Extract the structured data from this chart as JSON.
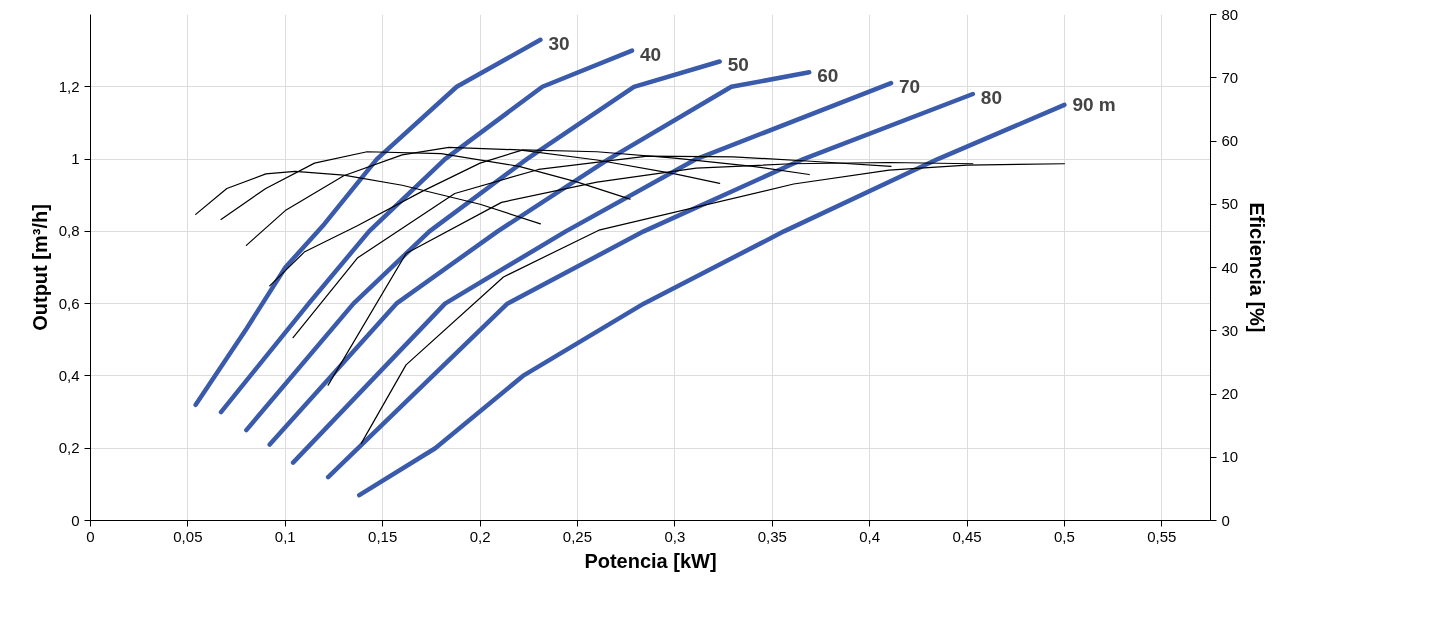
{
  "chart_data": {
    "type": "line",
    "xlabel": "Potencia [kW]",
    "ylabel": "Output [m³/h]",
    "y2label": "Eficiencia [%]",
    "xlim": [
      0,
      0.575
    ],
    "ylim": [
      0,
      1.4
    ],
    "y2lim": [
      0,
      80
    ],
    "xticks": [
      0,
      {
        "value": 0.05,
        "label": "0,05"
      },
      {
        "value": 0.1,
        "label": "0,1"
      },
      {
        "value": 0.15,
        "label": "0,15"
      },
      {
        "value": 0.2,
        "label": "0,2"
      },
      {
        "value": 0.25,
        "label": "0,25"
      },
      {
        "value": 0.3,
        "label": "0,3"
      },
      {
        "value": 0.35,
        "label": "0,35"
      },
      {
        "value": 0.4,
        "label": "0,4"
      },
      {
        "value": 0.45,
        "label": "0,45"
      },
      {
        "value": 0.5,
        "label": "0,5"
      },
      {
        "value": 0.55,
        "label": "0,55"
      }
    ],
    "yticks": [
      0,
      {
        "value": 0.2,
        "label": "0,2"
      },
      {
        "value": 0.4,
        "label": "0,4"
      },
      {
        "value": 0.6,
        "label": "0,6"
      },
      {
        "value": 0.8,
        "label": "0,8"
      },
      1,
      {
        "value": 1.2,
        "label": "1,2"
      }
    ],
    "y2ticks": [
      0,
      10,
      20,
      30,
      40,
      50,
      60,
      70,
      80
    ],
    "grid": true,
    "marker": "none",
    "line_style": "solid",
    "series": [
      {
        "name": "30",
        "color": "#3a5bab",
        "x": [
          0.054,
          0.08,
          0.1,
          0.12,
          0.147,
          0.188,
          0.231
        ],
        "values": [
          0.32,
          0.53,
          0.7,
          0.82,
          1.0,
          1.2,
          1.33
        ]
      },
      {
        "name": "40",
        "color": "#3a5bab",
        "x": [
          0.067,
          0.112,
          0.143,
          0.182,
          0.232,
          0.278
        ],
        "values": [
          0.3,
          0.6,
          0.8,
          1.0,
          1.2,
          1.3
        ]
      },
      {
        "name": "50",
        "color": "#3a5bab",
        "x": [
          0.08,
          0.135,
          0.174,
          0.224,
          0.279,
          0.323
        ],
        "values": [
          0.25,
          0.6,
          0.8,
          1.0,
          1.2,
          1.27
        ]
      },
      {
        "name": "60",
        "color": "#3a5bab",
        "x": [
          0.092,
          0.157,
          0.209,
          0.266,
          0.329,
          0.369
        ],
        "values": [
          0.21,
          0.6,
          0.8,
          1.0,
          1.2,
          1.24
        ]
      },
      {
        "name": "70",
        "color": "#3a5bab",
        "x": [
          0.104,
          0.182,
          0.244,
          0.311,
          0.411
        ],
        "values": [
          0.16,
          0.6,
          0.8,
          1.0,
          1.21
        ]
      },
      {
        "name": "80",
        "color": "#3a5bab",
        "x": [
          0.122,
          0.214,
          0.284,
          0.366,
          0.453
        ],
        "values": [
          0.12,
          0.6,
          0.8,
          1.0,
          1.18
        ]
      },
      {
        "name": "90 m",
        "color": "#3a5bab",
        "x": [
          0.138,
          0.177,
          0.222,
          0.284,
          0.356,
          0.435,
          0.5
        ],
        "values": [
          0.07,
          0.2,
          0.4,
          0.6,
          0.8,
          1.0,
          1.15
        ]
      },
      {
        "axis": "y2",
        "color": "#000000",
        "x": [
          0.054,
          0.07,
          0.09,
          0.105,
          0.13,
          0.16,
          0.2,
          0.231
        ],
        "values": [
          48.4,
          52.5,
          54.8,
          55.2,
          54.6,
          53,
          50,
          46.9
        ]
      },
      {
        "axis": "y2",
        "color": "#000000",
        "x": [
          0.067,
          0.09,
          0.115,
          0.142,
          0.18,
          0.22,
          0.25,
          0.277
        ],
        "values": [
          47.6,
          52.5,
          56.5,
          58.3,
          58,
          56,
          53.5,
          50.8
        ]
      },
      {
        "axis": "y2",
        "color": "#000000",
        "x": [
          0.08,
          0.1,
          0.13,
          0.16,
          0.184,
          0.22,
          0.26,
          0.3,
          0.323
        ],
        "values": [
          43.5,
          49,
          54.5,
          57.8,
          59,
          58.6,
          57,
          54.8,
          53.3
        ]
      },
      {
        "axis": "y2",
        "color": "#000000",
        "x": [
          0.092,
          0.11,
          0.137,
          0.17,
          0.2,
          0.222,
          0.26,
          0.3,
          0.34,
          0.369
        ],
        "values": [
          37.1,
          42.5,
          46.6,
          52,
          56.5,
          58.6,
          58.3,
          57.3,
          56,
          54.7
        ]
      },
      {
        "axis": "y2",
        "color": "#000000",
        "x": [
          0.104,
          0.137,
          0.187,
          0.23,
          0.286,
          0.33,
          0.37,
          0.411
        ],
        "values": [
          28.9,
          41.5,
          51.7,
          55.5,
          57.6,
          57.5,
          56.8,
          56
        ]
      },
      {
        "axis": "y2",
        "color": "#000000",
        "x": [
          0.122,
          0.162,
          0.211,
          0.26,
          0.311,
          0.36,
          0.41,
          0.453
        ],
        "values": [
          21.4,
          42.2,
          50.3,
          53.5,
          55.7,
          56.4,
          56.6,
          56.4
        ]
      },
      {
        "axis": "y2",
        "color": "#000000",
        "x": [
          0.139,
          0.162,
          0.212,
          0.261,
          0.361,
          0.41,
          0.45,
          0.5
        ],
        "values": [
          12.2,
          24.6,
          38.5,
          45.9,
          53.2,
          55.4,
          56.2,
          56.4
        ]
      }
    ]
  }
}
